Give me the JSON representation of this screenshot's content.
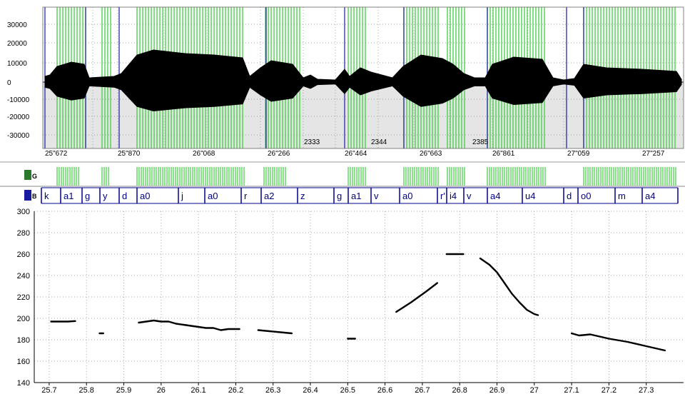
{
  "colors": {
    "pitch_band": "#2b7a2b",
    "green_bar": "#3fcf3f",
    "wave_bg": "#e5e5e5",
    "seg_border": "#000090",
    "label_text": "#000080",
    "curve": "#000000"
  },
  "waveform": {
    "y_ticks": [
      "30000",
      "20000",
      "10000",
      "0",
      "-10000",
      "-20000",
      "-30000"
    ],
    "time_ticks": [
      "25\"672",
      "25\"870",
      "26\"068",
      "26\"266",
      "26\"464",
      "26\"663",
      "26\"861",
      "27\"059",
      "27\"257"
    ],
    "annotations": [
      "2333",
      "2344",
      "2385"
    ]
  },
  "tiers": {
    "green_tier_badge": "G",
    "phone_tier_badge": "B",
    "phone_labels": [
      "k",
      "a1",
      "g",
      "y",
      "d",
      "a0",
      "j",
      "a0",
      "r",
      "a2",
      "z",
      "g",
      "a1",
      "v",
      "a0",
      "r'",
      "i4",
      "v",
      "a4",
      "u4",
      "d",
      "o0",
      "m",
      "a4"
    ]
  },
  "chart_data": {
    "type": "line",
    "title": "",
    "xlabel": "",
    "ylabel": "",
    "xlim": [
      25.66,
      27.4
    ],
    "ylim": [
      140,
      300
    ],
    "x_ticks": [
      25.7,
      25.8,
      25.9,
      26,
      26.1,
      26.2,
      26.3,
      26.4,
      26.5,
      26.6,
      26.7,
      26.8,
      26.9,
      27,
      27.1,
      27.2,
      27.3
    ],
    "x_tick_labels": [
      "25.7",
      "25.8",
      "25.9",
      "26",
      "26.1",
      "26.2",
      "26.3",
      "26.4",
      "26.5",
      "26.6",
      "26.7",
      "26.8",
      "26.9",
      "27",
      "27.1",
      "27.2",
      "27.3"
    ],
    "y_ticks": [
      140,
      160,
      180,
      200,
      220,
      240,
      260,
      280,
      300
    ],
    "y_tick_labels": [
      "140",
      "160",
      "180",
      "200",
      "220",
      "240",
      "260",
      "280",
      "300"
    ],
    "grid": true,
    "series": [
      {
        "x": [
          25.705,
          25.73,
          25.75,
          25.77
        ],
        "y": [
          197,
          197,
          197,
          197.5
        ]
      },
      {
        "x": [
          25.835,
          25.845
        ],
        "y": [
          186,
          186
        ]
      },
      {
        "x": [
          25.94,
          25.96,
          25.98,
          26.0,
          26.02,
          26.04,
          26.06,
          26.08,
          26.1,
          26.12,
          26.14,
          26.16,
          26.18,
          26.2,
          26.21
        ],
        "y": [
          196,
          197,
          198,
          197,
          197,
          195,
          194,
          193,
          192,
          191,
          191,
          189,
          190,
          190,
          190
        ]
      },
      {
        "x": [
          26.26,
          26.29,
          26.32,
          26.35
        ],
        "y": [
          189,
          188,
          187,
          186
        ]
      },
      {
        "x": [
          26.5,
          26.52
        ],
        "y": [
          181,
          181
        ]
      },
      {
        "x": [
          26.63,
          26.67,
          26.71,
          26.74
        ],
        "y": [
          206,
          215,
          225,
          233
        ]
      },
      {
        "x": [
          26.765,
          26.79,
          26.81
        ],
        "y": [
          260,
          260,
          260
        ]
      },
      {
        "x": [
          26.855,
          26.88,
          26.9,
          26.92,
          26.94,
          26.96,
          26.98,
          27.0,
          27.01
        ],
        "y": [
          256,
          250,
          243,
          233,
          223,
          215,
          208,
          204,
          203
        ]
      },
      {
        "x": [
          27.1,
          27.12,
          27.15,
          27.2,
          27.25,
          27.3,
          27.35
        ],
        "y": [
          186,
          184,
          185,
          181,
          178,
          174,
          170
        ]
      }
    ]
  }
}
